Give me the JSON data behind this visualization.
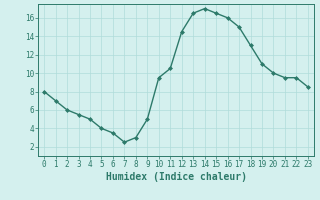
{
  "x": [
    0,
    1,
    2,
    3,
    4,
    5,
    6,
    7,
    8,
    9,
    10,
    11,
    12,
    13,
    14,
    15,
    16,
    17,
    18,
    19,
    20,
    21,
    22,
    23
  ],
  "y": [
    8,
    7,
    6,
    5.5,
    5,
    4,
    3.5,
    2.5,
    3,
    5,
    9.5,
    10.5,
    14.5,
    16.5,
    17,
    16.5,
    16,
    15,
    13,
    11,
    10,
    9.5,
    9.5,
    8.5
  ],
  "line_color": "#2d7a6a",
  "marker": "D",
  "marker_size": 2.0,
  "bg_color": "#d4f0ee",
  "grid_color": "#b0dcda",
  "xlabel": "Humidex (Indice chaleur)",
  "xlabel_fontsize": 7,
  "xlim": [
    -0.5,
    23.5
  ],
  "ylim": [
    1,
    17.5
  ],
  "yticks": [
    2,
    4,
    6,
    8,
    10,
    12,
    14,
    16
  ],
  "xticks": [
    0,
    1,
    2,
    3,
    4,
    5,
    6,
    7,
    8,
    9,
    10,
    11,
    12,
    13,
    14,
    15,
    16,
    17,
    18,
    19,
    20,
    21,
    22,
    23
  ],
  "tick_fontsize": 5.5,
  "tick_color": "#2d7a6a",
  "spine_color": "#2d7a6a",
  "linewidth": 1.0
}
